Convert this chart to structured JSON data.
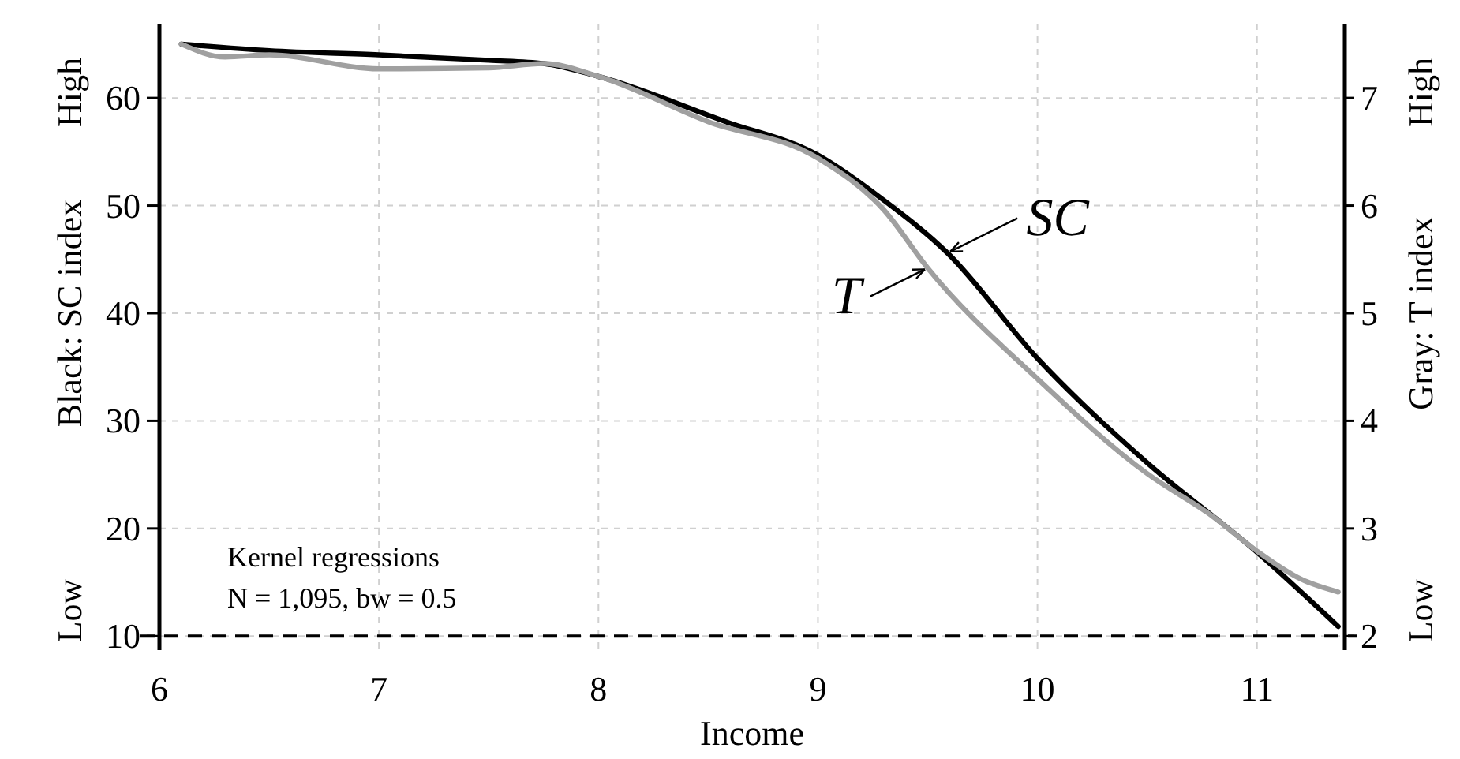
{
  "chart_data": {
    "type": "line",
    "xlabel": "Income",
    "ylabel": "Black: SC index",
    "y2label": "Gray: T index",
    "xlim": [
      6,
      11.4
    ],
    "xticks": [
      6,
      7,
      8,
      9,
      10,
      11
    ],
    "ylim": [
      8.7,
      66.9
    ],
    "yticks": [
      10,
      20,
      30,
      40,
      50,
      60
    ],
    "y2lim": [
      1.87,
      7.69
    ],
    "y2ticks": [
      2,
      3,
      4,
      5,
      6,
      7
    ],
    "grid": true,
    "line_style": "solid",
    "series": [
      {
        "color": "#000000",
        "x": [
          6.1,
          6.5,
          7.0,
          7.5,
          7.75,
          8.0,
          8.58,
          9.0,
          9.3,
          9.59,
          10.0,
          10.5,
          11.0,
          11.37
        ],
        "values": [
          65.0,
          64.4,
          64.0,
          63.5,
          63.2,
          62.0,
          57.8,
          54.7,
          50.5,
          45.6,
          35.8,
          26.1,
          17.8,
          10.9
        ]
      },
      {
        "color": "#a0a0a0",
        "axis": "y2",
        "x": [
          6.1,
          6.3,
          6.5,
          7.0,
          7.5,
          7.75,
          8.0,
          8.5,
          9.0,
          9.3,
          9.5,
          10.0,
          10.5,
          10.8,
          11.0,
          11.2,
          11.37
        ],
        "values": [
          7.5,
          7.38,
          7.4,
          7.27,
          7.28,
          7.32,
          7.2,
          6.78,
          6.44,
          5.96,
          5.42,
          4.39,
          3.51,
          3.11,
          2.79,
          2.53,
          2.41
        ]
      }
    ],
    "ref_lines": [
      {
        "axis": "y",
        "value": 10,
        "color": "#000000",
        "line_style": "dashed"
      }
    ],
    "annotations": [
      "High",
      "Low",
      "High",
      "Low",
      "Kernel regressions",
      "N = 1,095, bw = 0.5",
      {
        "text": "SC",
        "x": 9.59,
        "y": 45.6
      },
      {
        "text": "T",
        "x": 9.5,
        "y": 44.2
      }
    ]
  }
}
